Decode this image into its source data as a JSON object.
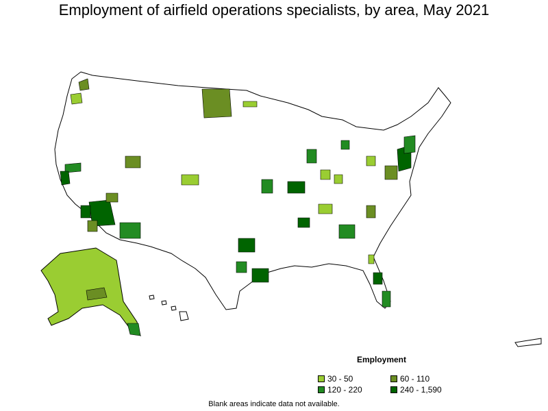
{
  "title": "Employment of airfield operations specialists, by area, May 2021",
  "legend": {
    "title": "Employment",
    "items": [
      {
        "label": "30 - 50",
        "color": "#9acd32"
      },
      {
        "label": "60 - 110",
        "color": "#6b8e23"
      },
      {
        "label": "120 - 220",
        "color": "#228b22"
      },
      {
        "label": "240 - 1,590",
        "color": "#006400"
      }
    ]
  },
  "footnote": "Blank areas indicate data not available.",
  "map": {
    "base_color": "#ffffff",
    "border_color": "#000000",
    "regions": [
      "contiguous-us",
      "alaska",
      "hawaii",
      "puerto-rico"
    ]
  }
}
